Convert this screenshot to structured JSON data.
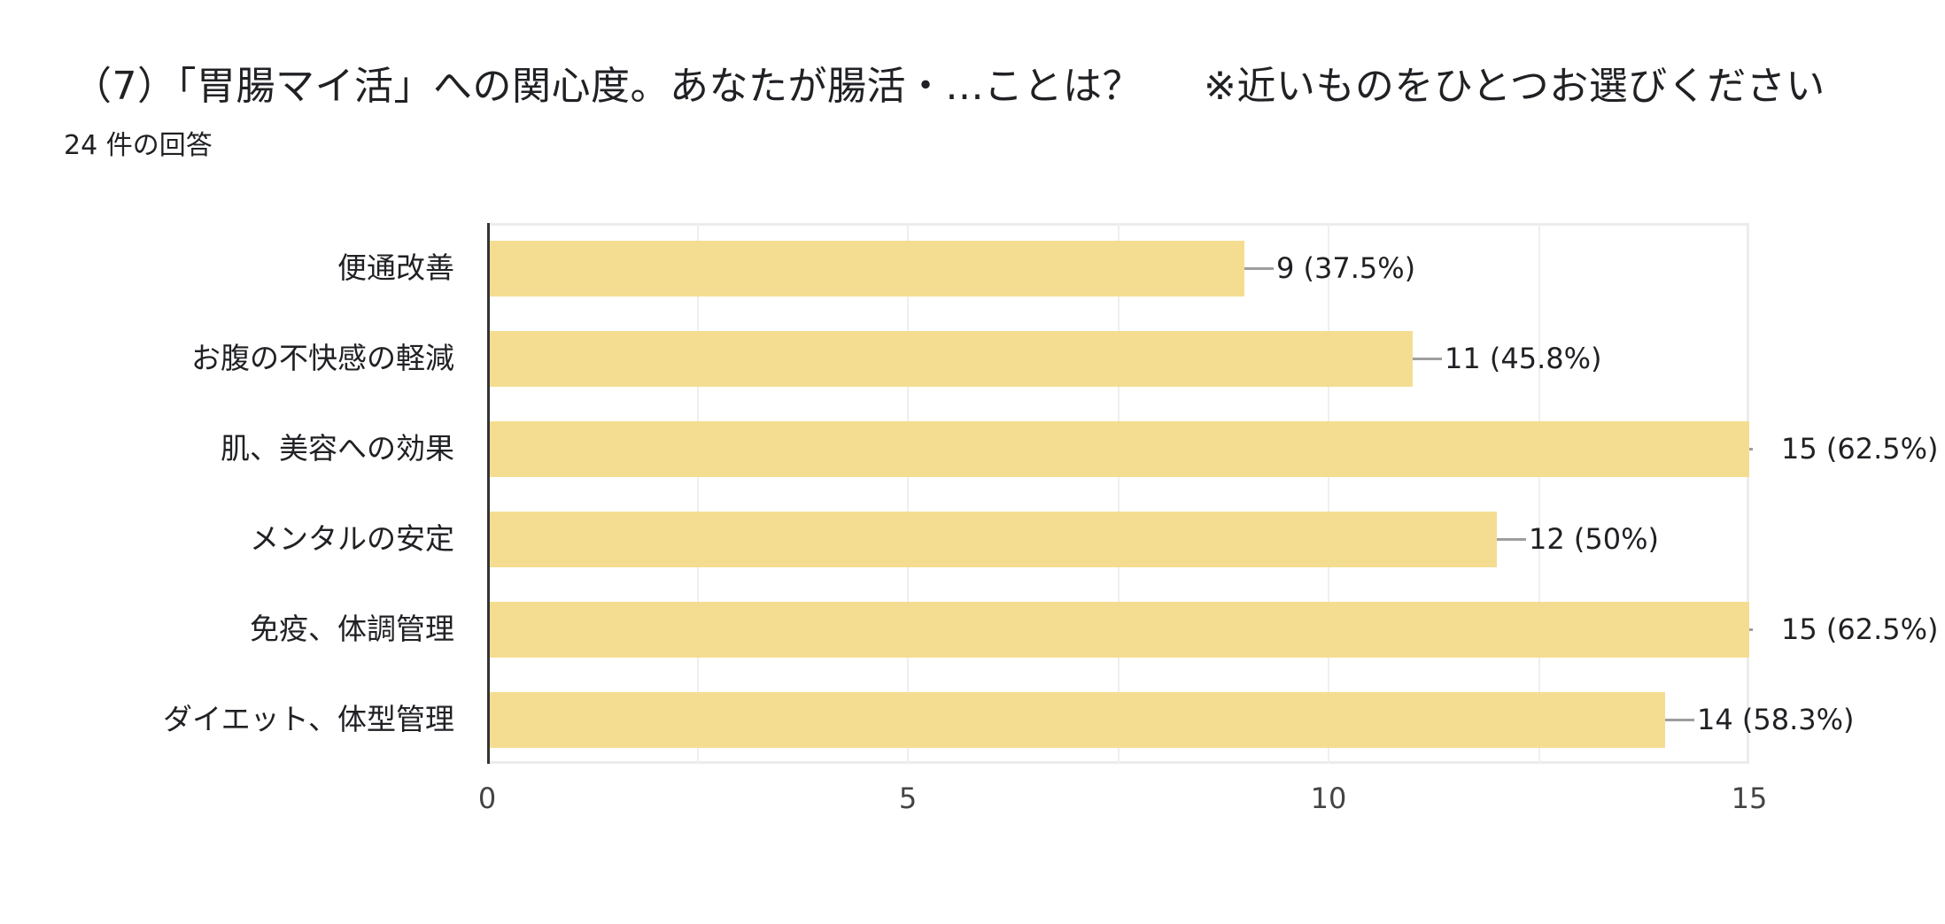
{
  "header": {
    "title": "（7）「胃腸マイ活」への関心度。あなたが腸活・...ことは？",
    "note": "※近いものをひとつお選びください",
    "response_count": "24 件の回答"
  },
  "style": {
    "bar_color": "#f4dd91",
    "axis_color": "#333333",
    "grid_color": "#efefef",
    "leader_color": "#9e9e9e"
  },
  "chart_data": {
    "type": "bar",
    "orientation": "horizontal",
    "title": "（7）「胃腸マイ活」への関心度。あなたが腸活・...ことは？ ※近いものをひとつお選びください",
    "subtitle": "24 件の回答",
    "categories": [
      "便通改善",
      "お腹の不快感の軽減",
      "肌、美容への効果",
      "メンタルの安定",
      "免疫、体調管理",
      "ダイエット、体型管理"
    ],
    "values": [
      9,
      11,
      15,
      12,
      15,
      14
    ],
    "percentages": [
      "37.5%",
      "45.8%",
      "62.5%",
      "50%",
      "62.5%",
      "58.3%"
    ],
    "data_labels": [
      "9 (37.5%)",
      "11 (45.8%)",
      "15 (62.5%)",
      "12 (50%)",
      "15 (62.5%)",
      "14 (58.3%)"
    ],
    "xlabel": "",
    "ylabel": "",
    "xlim": [
      0,
      15
    ],
    "x_ticks": [
      "0",
      "5",
      "10",
      "15"
    ],
    "grid": true,
    "legend": "none"
  },
  "axis": {
    "ticks": [
      "0",
      "5",
      "10",
      "15"
    ]
  }
}
